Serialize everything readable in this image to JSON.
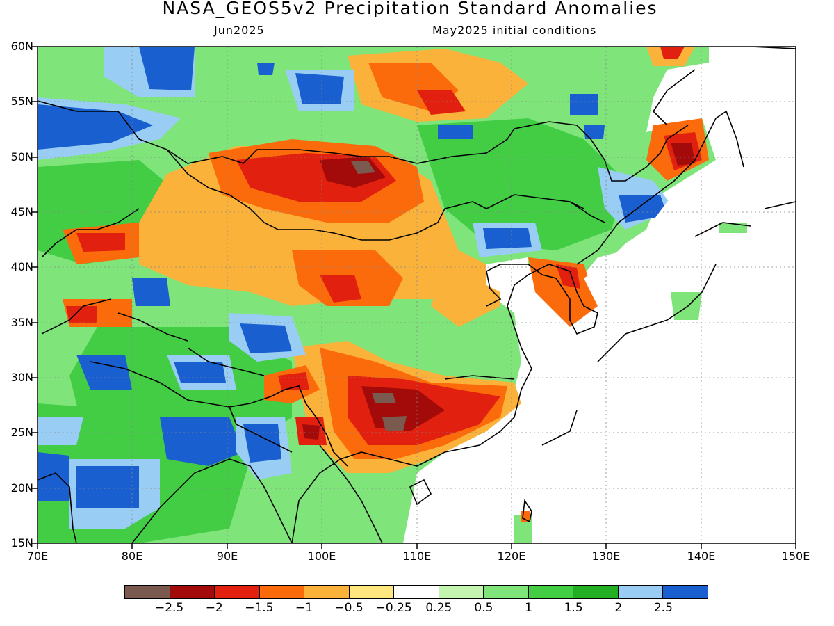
{
  "header": {
    "title": "NASA_GEOS5v2 Precipitation Standard Anomalies",
    "valid_month": "Jun2025",
    "initial_conditions": "May2025 initial conditions"
  },
  "map": {
    "lon_range": [
      70,
      150
    ],
    "lat_range": [
      15,
      60
    ],
    "lat_labels": [
      "15N",
      "20N",
      "25N",
      "30N",
      "35N",
      "40N",
      "45N",
      "50N",
      "55N",
      "60N"
    ],
    "lon_labels": [
      "70E",
      "80E",
      "90E",
      "100E",
      "110E",
      "120E",
      "130E",
      "140E",
      "150E"
    ]
  },
  "colorbar": {
    "colors": [
      "#7a5a4f",
      "#a30a0a",
      "#e1200f",
      "#fb6b0c",
      "#fbb23a",
      "#fde77e",
      "#ffffff",
      "#c3f4b0",
      "#7fe57a",
      "#43cd45",
      "#22af22",
      "#99cdf3",
      "#1a5fcf"
    ],
    "labels": [
      "−2.5",
      "−2",
      "−1.5",
      "−1",
      "−0.5",
      "−0.25",
      "0.25",
      "0.5",
      "1",
      "1.5",
      "2",
      "2.5"
    ]
  }
}
